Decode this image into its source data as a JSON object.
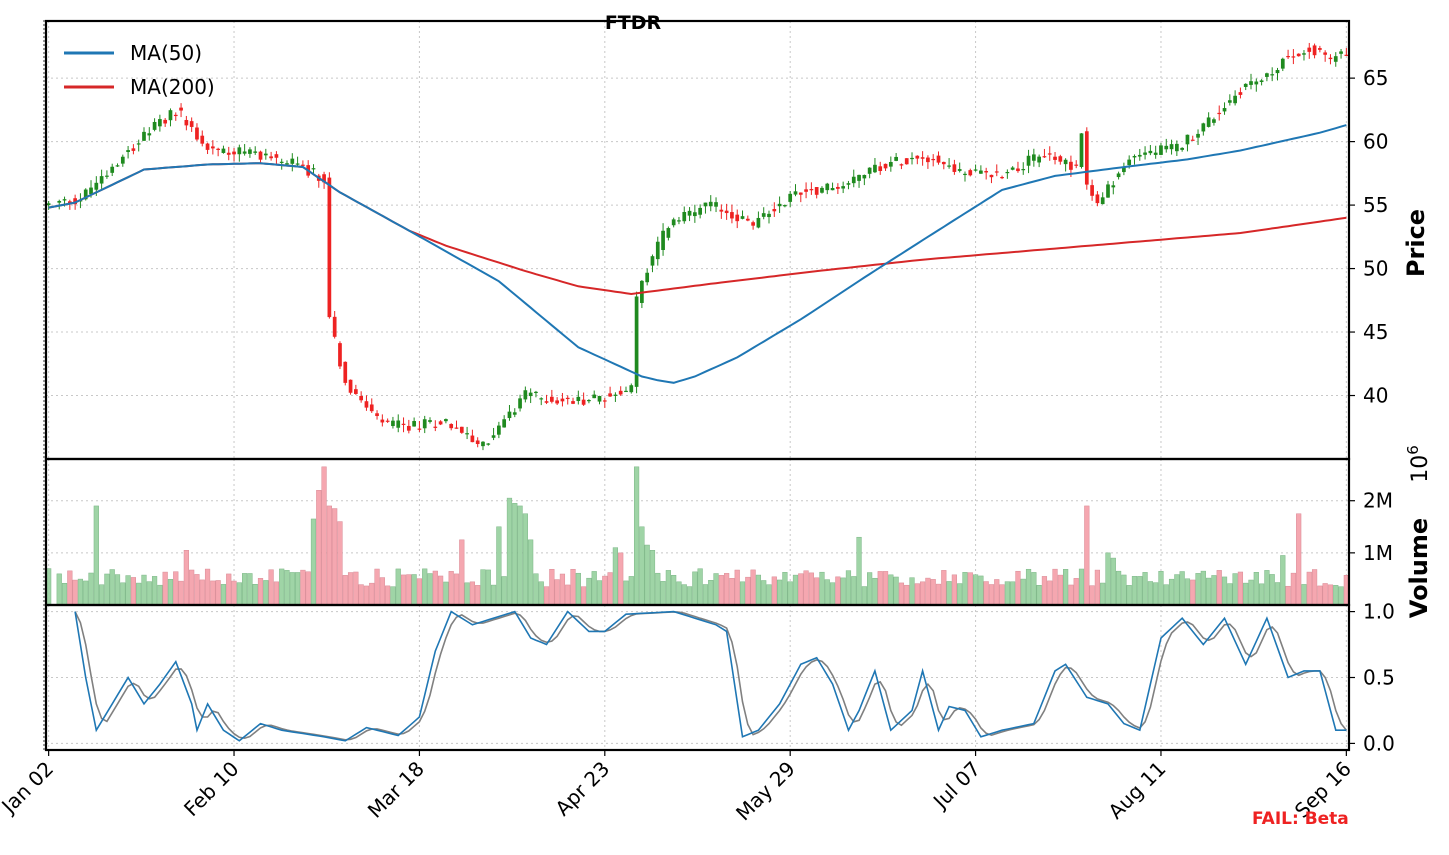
{
  "chart_data": {
    "title": "FTDR",
    "type": "candlestick",
    "x_ticks": [
      "Jan 02",
      "Feb 10",
      "Mar 18",
      "Apr 23",
      "May 29",
      "Jul 07",
      "Aug 11",
      "Sep 16"
    ],
    "price_panel": {
      "ylabel": "Price",
      "ylim": [
        35,
        69.5
      ],
      "yticks": [
        "40",
        "45",
        "50",
        "55",
        "60",
        "65"
      ],
      "legend": {
        "placement": "top-left",
        "entries": [
          {
            "name": "MA(50)",
            "color": "#1f77b4"
          },
          {
            "name": "MA(200)",
            "color": "#d62728"
          }
        ]
      },
      "up_color": "#1f8a1f",
      "down_color": "#ee2222",
      "keypoints": [
        [
          0,
          55
        ],
        [
          6,
          55.5
        ],
        [
          14,
          59
        ],
        [
          24,
          62.5
        ],
        [
          30,
          59.5
        ],
        [
          40,
          59
        ],
        [
          48,
          58
        ],
        [
          52,
          57
        ],
        [
          53,
          46
        ],
        [
          56,
          41
        ],
        [
          62,
          38
        ],
        [
          67,
          37.5
        ],
        [
          75,
          38
        ],
        [
          82,
          36
        ],
        [
          90,
          40
        ],
        [
          98,
          39.5
        ],
        [
          106,
          40
        ],
        [
          110,
          40.5
        ],
        [
          111,
          47.5
        ],
        [
          113,
          50
        ],
        [
          117,
          53.5
        ],
        [
          125,
          55
        ],
        [
          133,
          53.5
        ],
        [
          141,
          56
        ],
        [
          149,
          56.5
        ],
        [
          156,
          58
        ],
        [
          165,
          59
        ],
        [
          173,
          57.5
        ],
        [
          180,
          57.5
        ],
        [
          188,
          59
        ],
        [
          194,
          58
        ],
        [
          195,
          61
        ],
        [
          196,
          56.5
        ],
        [
          198,
          55
        ],
        [
          201,
          57
        ],
        [
          205,
          59
        ],
        [
          213,
          59.5
        ],
        [
          220,
          62
        ],
        [
          226,
          64.5
        ],
        [
          230,
          65
        ],
        [
          233,
          66.5
        ],
        [
          238,
          67.5
        ],
        [
          242,
          66.5
        ],
        [
          245,
          67
        ]
      ],
      "ma50": [
        [
          0,
          54.8
        ],
        [
          5,
          55.2
        ],
        [
          10,
          56.2
        ],
        [
          18,
          57.8
        ],
        [
          30,
          58.2
        ],
        [
          40,
          58.3
        ],
        [
          48,
          58.0
        ],
        [
          55,
          56
        ],
        [
          68,
          53
        ],
        [
          85,
          49
        ],
        [
          100,
          43.8
        ],
        [
          112,
          41.5
        ],
        [
          115,
          41.2
        ],
        [
          118,
          41.0
        ],
        [
          122,
          41.5
        ],
        [
          130,
          43
        ],
        [
          142,
          46
        ],
        [
          154,
          49.3
        ],
        [
          166,
          52.5
        ],
        [
          180,
          56.2
        ],
        [
          190,
          57.3
        ],
        [
          205,
          58.1
        ],
        [
          215,
          58.6
        ],
        [
          225,
          59.3
        ],
        [
          240,
          60.7
        ],
        [
          245,
          61.3
        ]
      ],
      "ma200": [
        [
          0,
          54.8
        ],
        [
          5,
          55.2
        ],
        [
          10,
          56.2
        ],
        [
          18,
          57.8
        ],
        [
          30,
          58.2
        ],
        [
          40,
          58.3
        ],
        [
          48,
          58.0
        ],
        [
          55,
          56
        ],
        [
          68,
          53
        ],
        [
          75,
          51.8
        ],
        [
          90,
          49.8
        ],
        [
          100,
          48.6
        ],
        [
          110,
          48.0
        ],
        [
          125,
          48.8
        ],
        [
          145,
          49.8
        ],
        [
          165,
          50.7
        ],
        [
          185,
          51.4
        ],
        [
          205,
          52.1
        ],
        [
          225,
          52.8
        ],
        [
          245,
          54.0
        ]
      ]
    },
    "volume_panel": {
      "ylabel": "Volume",
      "multiplier": "10^6",
      "ylim": [
        0,
        2.8
      ],
      "yticks": [
        "1M",
        "2M"
      ],
      "spikes": [
        [
          9,
          1.9
        ],
        [
          26,
          1.05
        ],
        [
          50,
          1.65
        ],
        [
          51,
          2.2
        ],
        [
          52,
          2.65
        ],
        [
          53,
          1.9
        ],
        [
          54,
          1.85
        ],
        [
          55,
          1.6
        ],
        [
          78,
          1.25
        ],
        [
          85,
          1.5
        ],
        [
          87,
          2.05
        ],
        [
          88,
          1.95
        ],
        [
          89,
          1.9
        ],
        [
          90,
          1.75
        ],
        [
          91,
          1.25
        ],
        [
          107,
          1.1
        ],
        [
          108,
          1.0
        ],
        [
          111,
          2.65
        ],
        [
          112,
          1.5
        ],
        [
          113,
          1.15
        ],
        [
          114,
          1.05
        ],
        [
          153,
          1.3
        ],
        [
          200,
          1.0
        ],
        [
          201,
          0.9
        ],
        [
          233,
          0.95
        ],
        [
          236,
          1.75
        ],
        [
          196,
          1.9
        ]
      ]
    },
    "oscillator_panel": {
      "ylim": [
        -0.05,
        1.05
      ],
      "yticks": [
        "0.0",
        "0.5",
        "1.0"
      ],
      "line_colors": [
        "#1f77b4",
        "#808080"
      ],
      "keypoints": [
        [
          5,
          1.0
        ],
        [
          7,
          0.5
        ],
        [
          9,
          0.1
        ],
        [
          12,
          0.3
        ],
        [
          15,
          0.5
        ],
        [
          18,
          0.3
        ],
        [
          21,
          0.45
        ],
        [
          24,
          0.62
        ],
        [
          27,
          0.3
        ],
        [
          28,
          0.1
        ],
        [
          30,
          0.3
        ],
        [
          33,
          0.1
        ],
        [
          36,
          0.02
        ],
        [
          40,
          0.15
        ],
        [
          44,
          0.1
        ],
        [
          52,
          0.05
        ],
        [
          56,
          0.02
        ],
        [
          60,
          0.12
        ],
        [
          66,
          0.06
        ],
        [
          70,
          0.2
        ],
        [
          73,
          0.7
        ],
        [
          76,
          1.0
        ],
        [
          80,
          0.9
        ],
        [
          84,
          0.95
        ],
        [
          88,
          1.0
        ],
        [
          91,
          0.8
        ],
        [
          94,
          0.75
        ],
        [
          98,
          1.0
        ],
        [
          102,
          0.85
        ],
        [
          105,
          0.85
        ],
        [
          109,
          0.98
        ],
        [
          118,
          1.0
        ],
        [
          126,
          0.9
        ],
        [
          128,
          0.85
        ],
        [
          131,
          0.05
        ],
        [
          134,
          0.1
        ],
        [
          138,
          0.3
        ],
        [
          142,
          0.6
        ],
        [
          145,
          0.65
        ],
        [
          148,
          0.45
        ],
        [
          151,
          0.1
        ],
        [
          153,
          0.25
        ],
        [
          156,
          0.55
        ],
        [
          159,
          0.1
        ],
        [
          163,
          0.25
        ],
        [
          165,
          0.55
        ],
        [
          168,
          0.1
        ],
        [
          170,
          0.28
        ],
        [
          173,
          0.25
        ],
        [
          176,
          0.05
        ],
        [
          180,
          0.1
        ],
        [
          186,
          0.15
        ],
        [
          190,
          0.55
        ],
        [
          192,
          0.6
        ],
        [
          196,
          0.35
        ],
        [
          200,
          0.3
        ],
        [
          203,
          0.15
        ],
        [
          206,
          0.1
        ],
        [
          210,
          0.8
        ],
        [
          214,
          0.95
        ],
        [
          218,
          0.75
        ],
        [
          222,
          0.95
        ],
        [
          226,
          0.6
        ],
        [
          230,
          0.95
        ],
        [
          234,
          0.5
        ],
        [
          237,
          0.55
        ],
        [
          240,
          0.55
        ],
        [
          243,
          0.1
        ],
        [
          245,
          0.1
        ]
      ]
    }
  },
  "watermark": {
    "text": "FAIL: Beta",
    "color": "#ee2222"
  }
}
